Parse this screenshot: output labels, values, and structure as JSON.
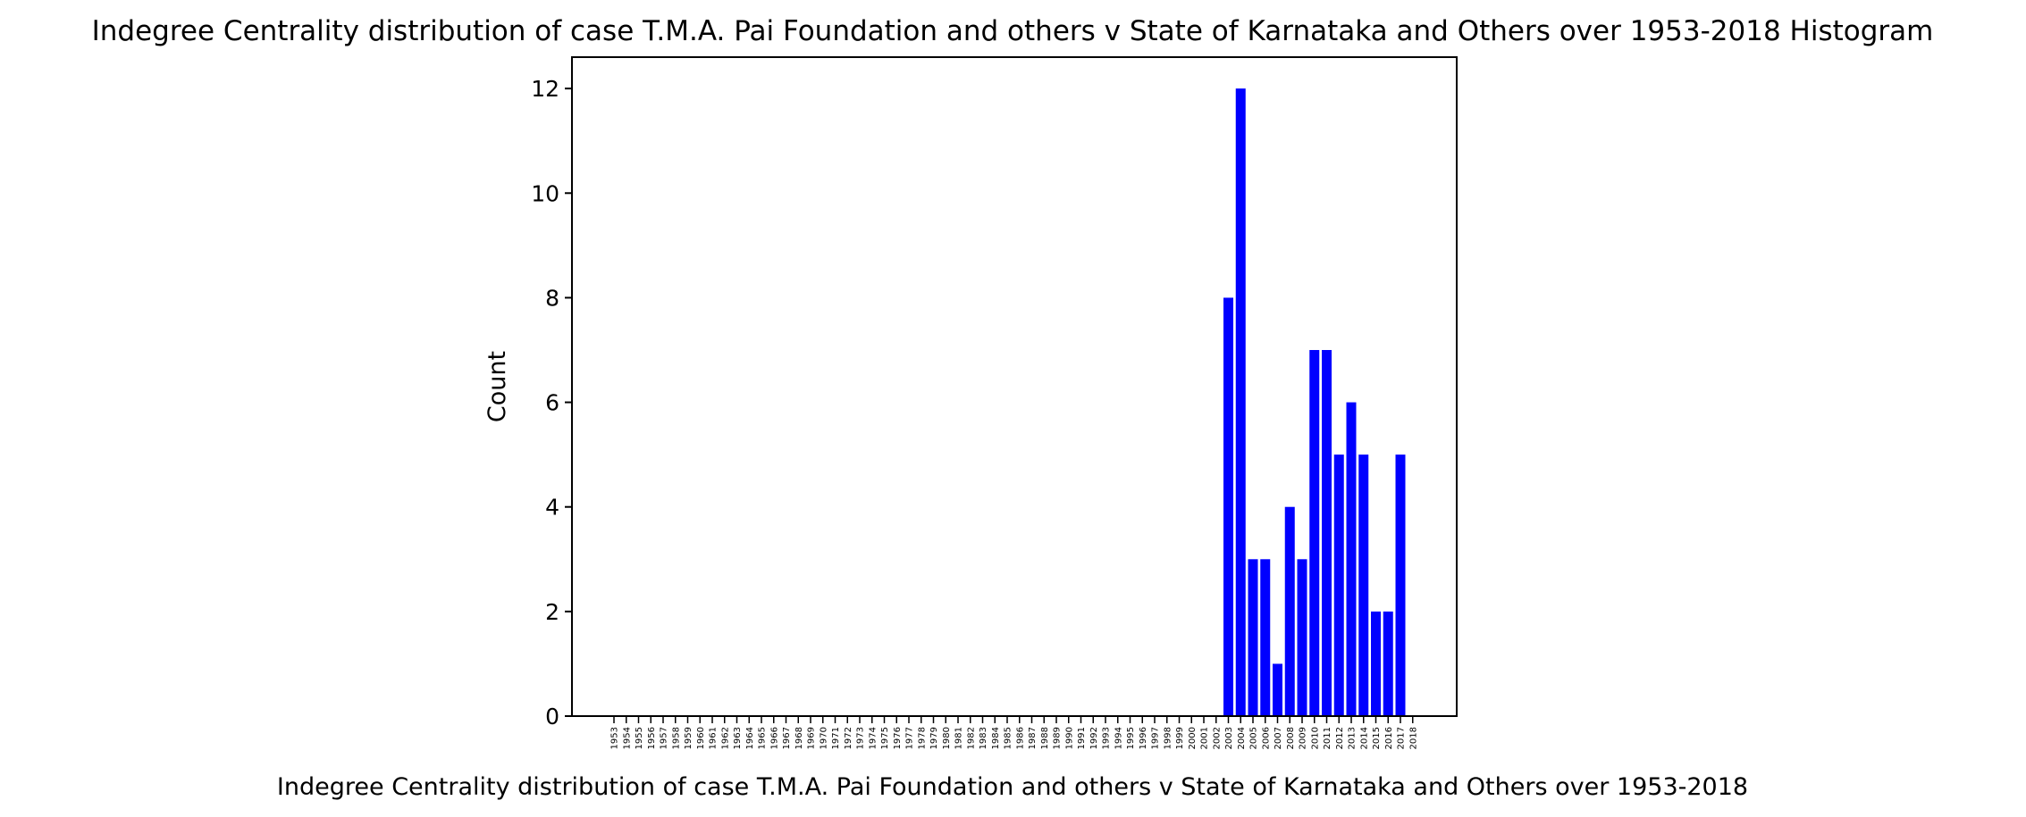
{
  "chart_data": {
    "type": "bar",
    "title": "Indegree Centrality distribution of case T.M.A. Pai Foundation and others v State of Karnataka and Others over 1953-2018 Histogram",
    "xlabel": "Indegree Centrality distribution of case T.M.A. Pai Foundation and others v State of Karnataka and Others over 1953-2018",
    "ylabel": "Count",
    "ylim": [
      0,
      12.6
    ],
    "yticks": [
      "0",
      "2",
      "4",
      "6",
      "8",
      "10",
      "12"
    ],
    "grid": false,
    "bar_color": "#0000ff",
    "categories": [
      "1953",
      "1954",
      "1955",
      "1956",
      "1957",
      "1958",
      "1959",
      "1960",
      "1961",
      "1962",
      "1963",
      "1964",
      "1965",
      "1966",
      "1967",
      "1968",
      "1969",
      "1970",
      "1971",
      "1972",
      "1973",
      "1974",
      "1975",
      "1976",
      "1977",
      "1978",
      "1979",
      "1980",
      "1981",
      "1982",
      "1983",
      "1984",
      "1985",
      "1986",
      "1987",
      "1988",
      "1989",
      "1990",
      "1991",
      "1992",
      "1993",
      "1994",
      "1995",
      "1996",
      "1997",
      "1998",
      "1999",
      "2000",
      "2001",
      "2002",
      "2003",
      "2004",
      "2005",
      "2006",
      "2007",
      "2008",
      "2009",
      "2010",
      "2011",
      "2012",
      "2013",
      "2014",
      "2015",
      "2016",
      "2017",
      "2018"
    ],
    "values": [
      0,
      0,
      0,
      0,
      0,
      0,
      0,
      0,
      0,
      0,
      0,
      0,
      0,
      0,
      0,
      0,
      0,
      0,
      0,
      0,
      0,
      0,
      0,
      0,
      0,
      0,
      0,
      0,
      0,
      0,
      0,
      0,
      0,
      0,
      0,
      0,
      0,
      0,
      0,
      0,
      0,
      0,
      0,
      0,
      0,
      0,
      0,
      0,
      0,
      0,
      8,
      12,
      3,
      3,
      1,
      4,
      3,
      7,
      7,
      5,
      6,
      5,
      2,
      2,
      5,
      0
    ]
  }
}
